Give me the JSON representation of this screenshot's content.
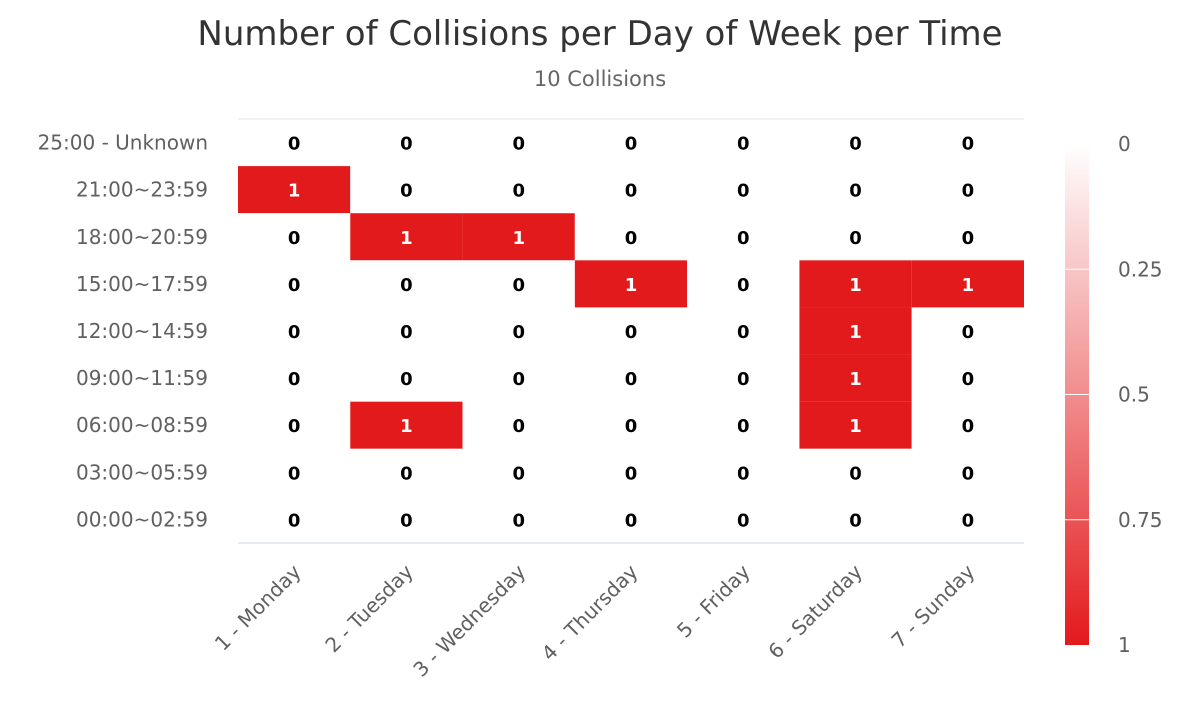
{
  "chart_data": {
    "type": "heatmap",
    "title": "Number of Collisions per Day of Week per Time",
    "subtitle": "10 Collisions",
    "x_categories": [
      "1 - Monday",
      "2 - Tuesday",
      "3 - Wednesday",
      "4 - Thursday",
      "5 - Friday",
      "6 - Saturday",
      "7 - Sunday"
    ],
    "y_categories": [
      "25:00 - Unknown",
      "21:00~23:59",
      "18:00~20:59",
      "15:00~17:59",
      "12:00~14:59",
      "09:00~11:59",
      "06:00~08:59",
      "03:00~05:59",
      "00:00~02:59"
    ],
    "values": [
      [
        0,
        0,
        0,
        0,
        0,
        0,
        0
      ],
      [
        1,
        0,
        0,
        0,
        0,
        0,
        0
      ],
      [
        0,
        1,
        1,
        0,
        0,
        0,
        0
      ],
      [
        0,
        0,
        0,
        1,
        0,
        1,
        1
      ],
      [
        0,
        0,
        0,
        0,
        0,
        1,
        0
      ],
      [
        0,
        0,
        0,
        0,
        0,
        1,
        0
      ],
      [
        0,
        1,
        0,
        0,
        0,
        1,
        0
      ],
      [
        0,
        0,
        0,
        0,
        0,
        0,
        0
      ],
      [
        0,
        0,
        0,
        0,
        0,
        0,
        0
      ]
    ],
    "color_axis": {
      "min": 0,
      "max": 1,
      "min_color": "#ffffff",
      "max_color": "#e31a1c",
      "tick_labels": [
        "0",
        "0.25",
        "0.5",
        "0.75",
        "1"
      ]
    },
    "legend_position": "right"
  }
}
